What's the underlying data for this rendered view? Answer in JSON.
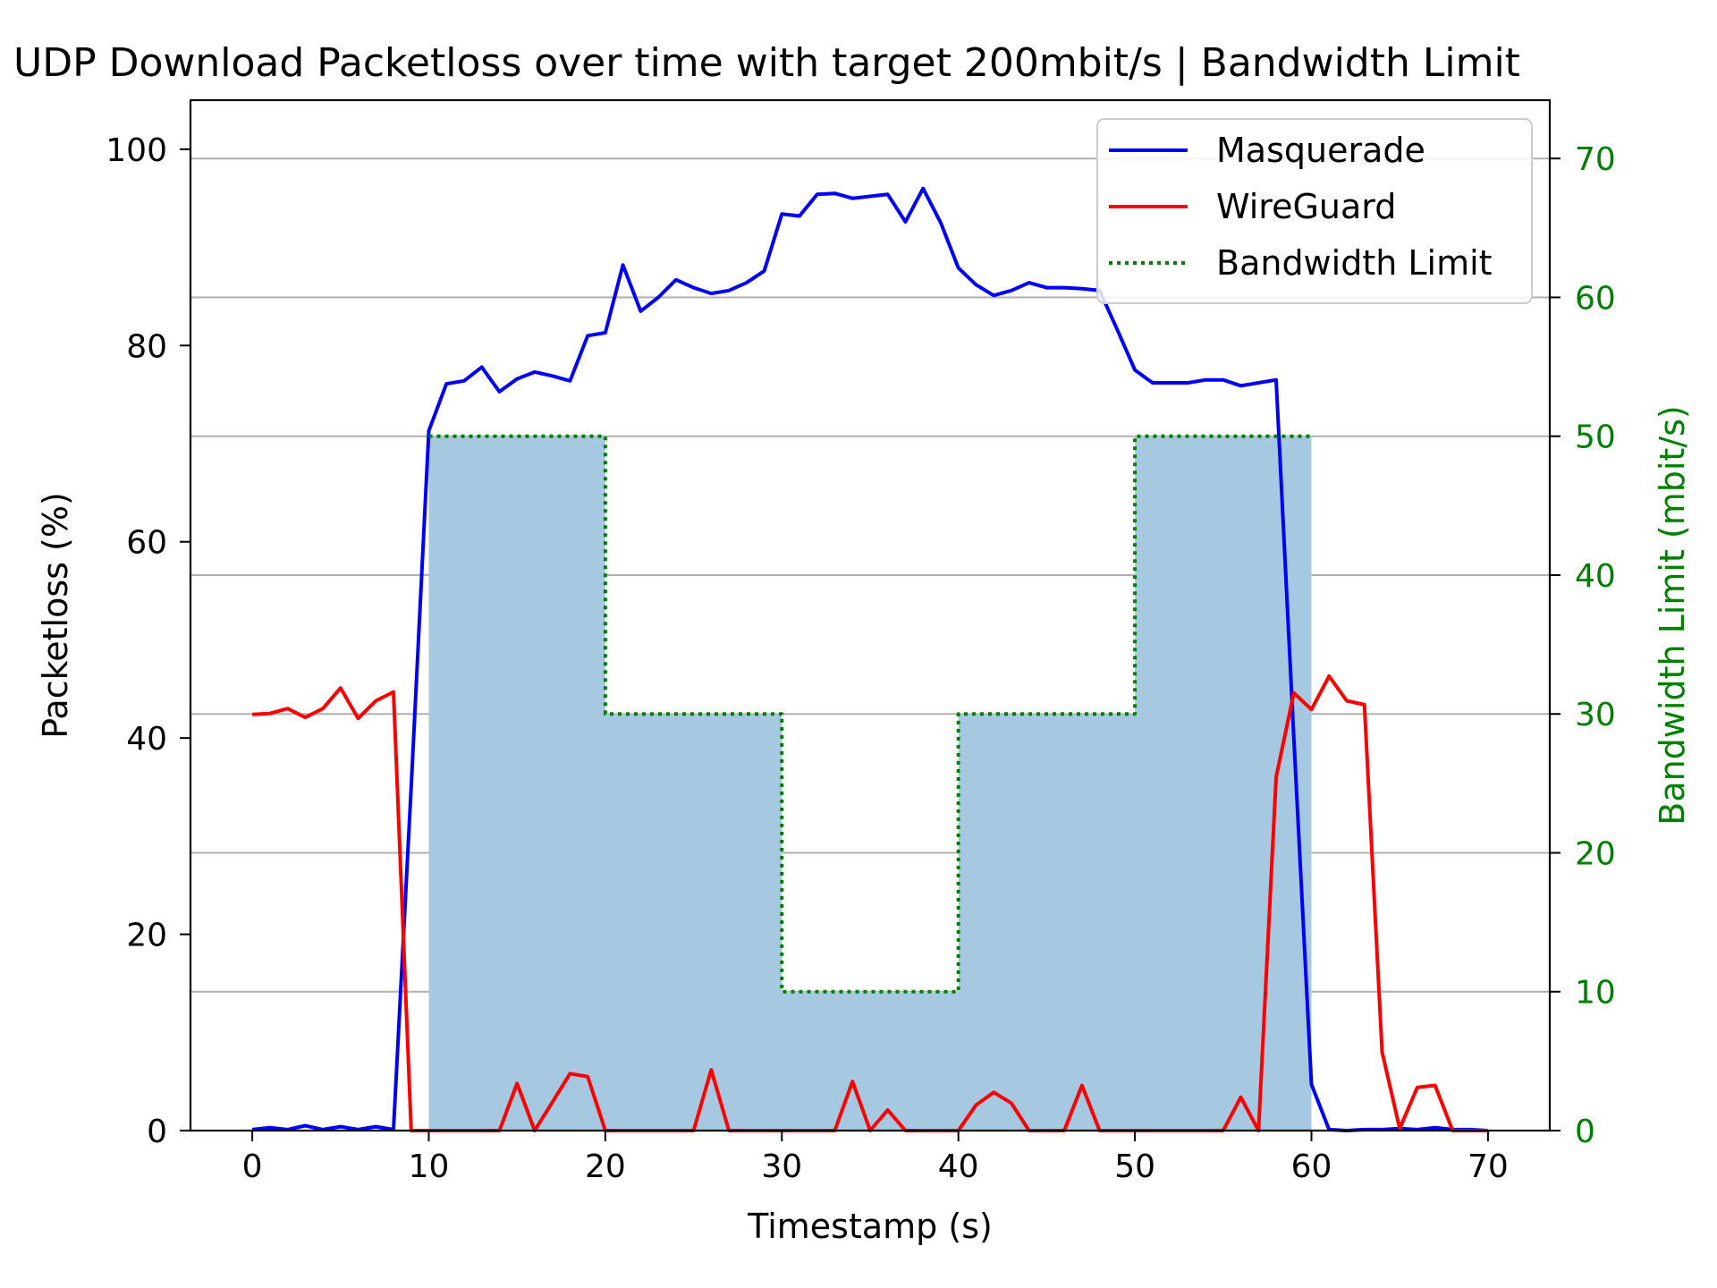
{
  "chart_data": {
    "type": "line",
    "title": "UDP Download Packetloss over time with target 200mbit/s | Bandwidth Limit",
    "xlabel": "Timestamp (s)",
    "ylabel": "Packetloss (%)",
    "y2label": "Bandwidth Limit (mbit/s)",
    "xlim": [
      -3.5,
      73.5
    ],
    "ylim": [
      0,
      105
    ],
    "y2lim": [
      0,
      74.2
    ],
    "xticks": [
      0,
      10,
      20,
      30,
      40,
      50,
      60,
      70
    ],
    "yticks": [
      0,
      20,
      40,
      60,
      80,
      100
    ],
    "y2ticks": [
      0,
      10,
      20,
      30,
      40,
      50,
      60,
      70
    ],
    "grid": "horizontal, right axis",
    "legend": "top-right",
    "colors": {
      "masquerade": "#0000ff",
      "wireguard": "#ff0000",
      "bandwidth": "#008000",
      "fill": "#a6c8e0",
      "right_axis": "#008000",
      "grid": "#b0b0b0"
    },
    "series": [
      {
        "name": "Masquerade",
        "axis": "left",
        "style": "solid",
        "x": [
          0,
          1,
          2,
          3,
          4,
          5,
          6,
          7,
          8,
          9,
          10,
          11,
          12,
          13,
          14,
          15,
          16,
          17,
          18,
          19,
          20,
          21,
          22,
          23,
          24,
          25,
          26,
          27,
          28,
          29,
          30,
          31,
          32,
          33,
          34,
          35,
          36,
          37,
          38,
          39,
          40,
          41,
          42,
          43,
          44,
          45,
          46,
          47,
          48,
          49,
          50,
          51,
          52,
          53,
          54,
          55,
          56,
          57,
          58,
          59,
          60,
          61,
          62,
          63,
          64,
          65,
          66,
          67,
          68,
          69,
          70
        ],
        "values": [
          0.1,
          0.3,
          0.1,
          0.5,
          0.1,
          0.4,
          0.1,
          0.4,
          0.1,
          35,
          71.3,
          76.1,
          76.4,
          77.8,
          75.3,
          76.6,
          77.3,
          76.9,
          76.4,
          81.0,
          81.3,
          88.2,
          83.5,
          84.9,
          86.7,
          85.9,
          85.3,
          85.6,
          86.4,
          87.6,
          93.4,
          93.2,
          95.4,
          95.5,
          95.0,
          95.2,
          95.4,
          92.6,
          96.0,
          92.5,
          87.9,
          86.2,
          85.1,
          85.6,
          86.4,
          85.9,
          85.9,
          85.8,
          85.6,
          81.6,
          77.5,
          76.2,
          76.2,
          76.2,
          76.5,
          76.5,
          75.9,
          76.2,
          76.5,
          40.0,
          4.7,
          0.1,
          0.0,
          0.1,
          0.1,
          0.2,
          0.1,
          0.3,
          0.1,
          0.1,
          0.0
        ]
      },
      {
        "name": "WireGuard",
        "axis": "left",
        "style": "solid",
        "x": [
          0,
          1,
          2,
          3,
          4,
          5,
          6,
          7,
          8,
          9,
          10,
          11,
          12,
          13,
          14,
          15,
          16,
          17,
          18,
          19,
          20,
          21,
          22,
          23,
          24,
          25,
          26,
          27,
          28,
          29,
          30,
          31,
          32,
          33,
          34,
          35,
          36,
          37,
          38,
          39,
          40,
          41,
          42,
          43,
          44,
          45,
          46,
          47,
          48,
          49,
          50,
          51,
          52,
          53,
          54,
          55,
          56,
          57,
          58,
          59,
          60,
          61,
          62,
          63,
          64,
          65,
          66,
          67,
          68,
          69,
          70
        ],
        "values": [
          42.4,
          42.5,
          43.0,
          42.1,
          43.0,
          45.1,
          42.0,
          43.8,
          44.7,
          0,
          0,
          0,
          0,
          0,
          0,
          4.8,
          0,
          2.9,
          5.8,
          5.5,
          0,
          0,
          0,
          0,
          0,
          0,
          6.2,
          0,
          0,
          0,
          0,
          0,
          0,
          0,
          5.0,
          0,
          2.1,
          0,
          0,
          0,
          0,
          2.6,
          3.9,
          2.8,
          0,
          0,
          0,
          4.6,
          0,
          0,
          0,
          0,
          0,
          0,
          0,
          0,
          3.4,
          0,
          36.0,
          44.6,
          42.9,
          46.3,
          43.8,
          43.4,
          8.0,
          0.2,
          4.4,
          4.6,
          0,
          0,
          0
        ]
      },
      {
        "name": "Bandwidth Limit",
        "axis": "right",
        "style": "dotted",
        "x": [
          10,
          20,
          20,
          30,
          30,
          40,
          40,
          50,
          50,
          60
        ],
        "values": [
          50,
          50,
          30,
          30,
          10,
          10,
          30,
          30,
          50,
          50
        ]
      }
    ]
  }
}
